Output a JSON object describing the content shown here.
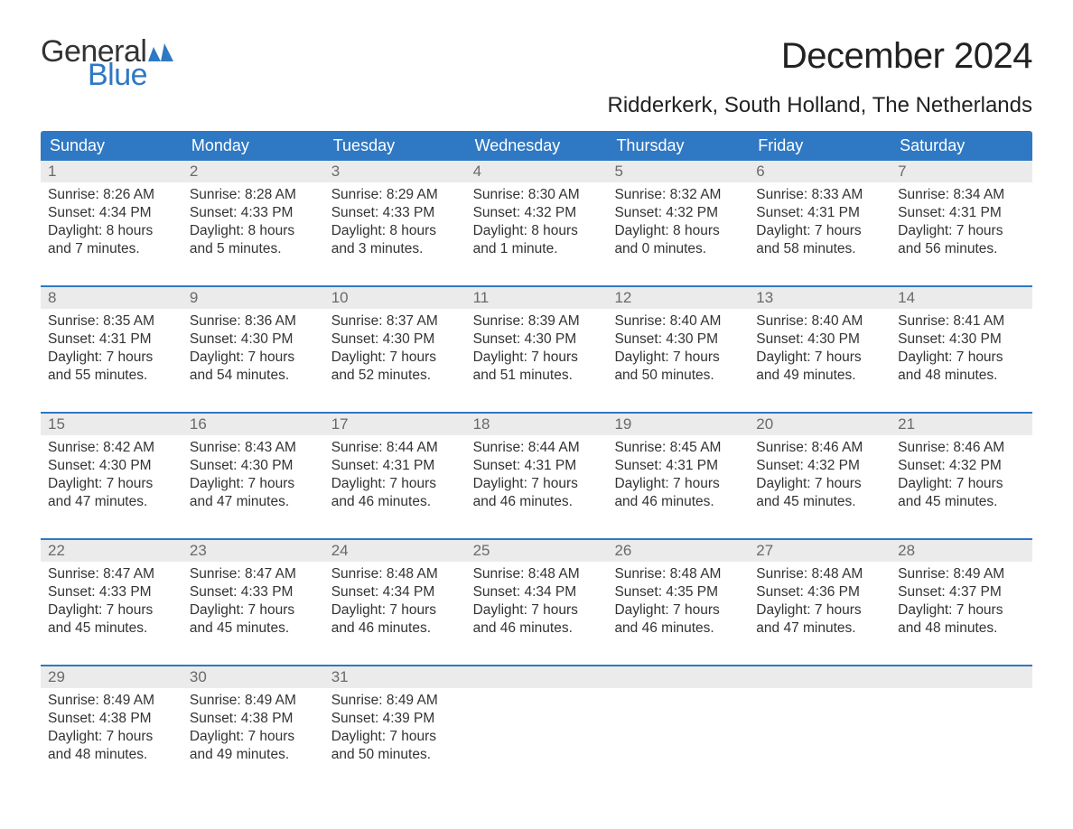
{
  "logo": {
    "text_general": "General",
    "text_blue": "Blue",
    "flag_color": "#2f78c4"
  },
  "title": "December 2024",
  "location": "Ridderkerk, South Holland, The Netherlands",
  "colors": {
    "header_bg": "#2f78c4",
    "header_text": "#ffffff",
    "daynum_bg": "#ebebeb",
    "daynum_text": "#6a6a6a",
    "body_text": "#333333",
    "week_divider": "#2f78c4",
    "page_bg": "#ffffff"
  },
  "typography": {
    "title_fontsize": 40,
    "location_fontsize": 24,
    "weekday_fontsize": 18,
    "daynum_fontsize": 17,
    "cell_fontsize": 15.5,
    "logo_fontsize": 34
  },
  "weekdays": [
    "Sunday",
    "Monday",
    "Tuesday",
    "Wednesday",
    "Thursday",
    "Friday",
    "Saturday"
  ],
  "weeks": [
    [
      {
        "n": "1",
        "sunrise": "Sunrise: 8:26 AM",
        "sunset": "Sunset: 4:34 PM",
        "d1": "Daylight: 8 hours",
        "d2": "and 7 minutes."
      },
      {
        "n": "2",
        "sunrise": "Sunrise: 8:28 AM",
        "sunset": "Sunset: 4:33 PM",
        "d1": "Daylight: 8 hours",
        "d2": "and 5 minutes."
      },
      {
        "n": "3",
        "sunrise": "Sunrise: 8:29 AM",
        "sunset": "Sunset: 4:33 PM",
        "d1": "Daylight: 8 hours",
        "d2": "and 3 minutes."
      },
      {
        "n": "4",
        "sunrise": "Sunrise: 8:30 AM",
        "sunset": "Sunset: 4:32 PM",
        "d1": "Daylight: 8 hours",
        "d2": "and 1 minute."
      },
      {
        "n": "5",
        "sunrise": "Sunrise: 8:32 AM",
        "sunset": "Sunset: 4:32 PM",
        "d1": "Daylight: 8 hours",
        "d2": "and 0 minutes."
      },
      {
        "n": "6",
        "sunrise": "Sunrise: 8:33 AM",
        "sunset": "Sunset: 4:31 PM",
        "d1": "Daylight: 7 hours",
        "d2": "and 58 minutes."
      },
      {
        "n": "7",
        "sunrise": "Sunrise: 8:34 AM",
        "sunset": "Sunset: 4:31 PM",
        "d1": "Daylight: 7 hours",
        "d2": "and 56 minutes."
      }
    ],
    [
      {
        "n": "8",
        "sunrise": "Sunrise: 8:35 AM",
        "sunset": "Sunset: 4:31 PM",
        "d1": "Daylight: 7 hours",
        "d2": "and 55 minutes."
      },
      {
        "n": "9",
        "sunrise": "Sunrise: 8:36 AM",
        "sunset": "Sunset: 4:30 PM",
        "d1": "Daylight: 7 hours",
        "d2": "and 54 minutes."
      },
      {
        "n": "10",
        "sunrise": "Sunrise: 8:37 AM",
        "sunset": "Sunset: 4:30 PM",
        "d1": "Daylight: 7 hours",
        "d2": "and 52 minutes."
      },
      {
        "n": "11",
        "sunrise": "Sunrise: 8:39 AM",
        "sunset": "Sunset: 4:30 PM",
        "d1": "Daylight: 7 hours",
        "d2": "and 51 minutes."
      },
      {
        "n": "12",
        "sunrise": "Sunrise: 8:40 AM",
        "sunset": "Sunset: 4:30 PM",
        "d1": "Daylight: 7 hours",
        "d2": "and 50 minutes."
      },
      {
        "n": "13",
        "sunrise": "Sunrise: 8:40 AM",
        "sunset": "Sunset: 4:30 PM",
        "d1": "Daylight: 7 hours",
        "d2": "and 49 minutes."
      },
      {
        "n": "14",
        "sunrise": "Sunrise: 8:41 AM",
        "sunset": "Sunset: 4:30 PM",
        "d1": "Daylight: 7 hours",
        "d2": "and 48 minutes."
      }
    ],
    [
      {
        "n": "15",
        "sunrise": "Sunrise: 8:42 AM",
        "sunset": "Sunset: 4:30 PM",
        "d1": "Daylight: 7 hours",
        "d2": "and 47 minutes."
      },
      {
        "n": "16",
        "sunrise": "Sunrise: 8:43 AM",
        "sunset": "Sunset: 4:30 PM",
        "d1": "Daylight: 7 hours",
        "d2": "and 47 minutes."
      },
      {
        "n": "17",
        "sunrise": "Sunrise: 8:44 AM",
        "sunset": "Sunset: 4:31 PM",
        "d1": "Daylight: 7 hours",
        "d2": "and 46 minutes."
      },
      {
        "n": "18",
        "sunrise": "Sunrise: 8:44 AM",
        "sunset": "Sunset: 4:31 PM",
        "d1": "Daylight: 7 hours",
        "d2": "and 46 minutes."
      },
      {
        "n": "19",
        "sunrise": "Sunrise: 8:45 AM",
        "sunset": "Sunset: 4:31 PM",
        "d1": "Daylight: 7 hours",
        "d2": "and 46 minutes."
      },
      {
        "n": "20",
        "sunrise": "Sunrise: 8:46 AM",
        "sunset": "Sunset: 4:32 PM",
        "d1": "Daylight: 7 hours",
        "d2": "and 45 minutes."
      },
      {
        "n": "21",
        "sunrise": "Sunrise: 8:46 AM",
        "sunset": "Sunset: 4:32 PM",
        "d1": "Daylight: 7 hours",
        "d2": "and 45 minutes."
      }
    ],
    [
      {
        "n": "22",
        "sunrise": "Sunrise: 8:47 AM",
        "sunset": "Sunset: 4:33 PM",
        "d1": "Daylight: 7 hours",
        "d2": "and 45 minutes."
      },
      {
        "n": "23",
        "sunrise": "Sunrise: 8:47 AM",
        "sunset": "Sunset: 4:33 PM",
        "d1": "Daylight: 7 hours",
        "d2": "and 45 minutes."
      },
      {
        "n": "24",
        "sunrise": "Sunrise: 8:48 AM",
        "sunset": "Sunset: 4:34 PM",
        "d1": "Daylight: 7 hours",
        "d2": "and 46 minutes."
      },
      {
        "n": "25",
        "sunrise": "Sunrise: 8:48 AM",
        "sunset": "Sunset: 4:34 PM",
        "d1": "Daylight: 7 hours",
        "d2": "and 46 minutes."
      },
      {
        "n": "26",
        "sunrise": "Sunrise: 8:48 AM",
        "sunset": "Sunset: 4:35 PM",
        "d1": "Daylight: 7 hours",
        "d2": "and 46 minutes."
      },
      {
        "n": "27",
        "sunrise": "Sunrise: 8:48 AM",
        "sunset": "Sunset: 4:36 PM",
        "d1": "Daylight: 7 hours",
        "d2": "and 47 minutes."
      },
      {
        "n": "28",
        "sunrise": "Sunrise: 8:49 AM",
        "sunset": "Sunset: 4:37 PM",
        "d1": "Daylight: 7 hours",
        "d2": "and 48 minutes."
      }
    ],
    [
      {
        "n": "29",
        "sunrise": "Sunrise: 8:49 AM",
        "sunset": "Sunset: 4:38 PM",
        "d1": "Daylight: 7 hours",
        "d2": "and 48 minutes."
      },
      {
        "n": "30",
        "sunrise": "Sunrise: 8:49 AM",
        "sunset": "Sunset: 4:38 PM",
        "d1": "Daylight: 7 hours",
        "d2": "and 49 minutes."
      },
      {
        "n": "31",
        "sunrise": "Sunrise: 8:49 AM",
        "sunset": "Sunset: 4:39 PM",
        "d1": "Daylight: 7 hours",
        "d2": "and 50 minutes."
      },
      null,
      null,
      null,
      null
    ]
  ]
}
